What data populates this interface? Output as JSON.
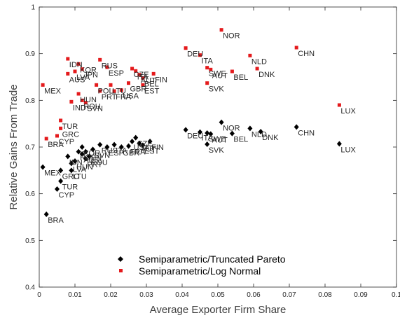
{
  "chart_data": {
    "type": "scatter",
    "title": "",
    "xlabel": "Average Exporter Firm Share",
    "ylabel": "Relative Gains From Trade",
    "xlim": [
      0,
      0.1
    ],
    "ylim": [
      0.4,
      1.0
    ],
    "xticks": [
      "0",
      "0.01",
      "0.02",
      "0.03",
      "0.04",
      "0.05",
      "0.06",
      "0.07",
      "0.08",
      "0.09",
      "0.1"
    ],
    "yticks": [
      "0.4",
      "0.5",
      "0.6",
      "0.7",
      "0.8",
      "0.9",
      "1"
    ],
    "grid": false,
    "legend_position": "bottom-center",
    "series": [
      {
        "name": "Semiparametric/Truncated Pareto",
        "marker": "diamond",
        "color": "#000000",
        "points": [
          {
            "label": "BRA",
            "x": 0.002,
            "y": 0.556
          },
          {
            "label": "CYP",
            "x": 0.005,
            "y": 0.61
          },
          {
            "label": "TUR",
            "x": 0.006,
            "y": 0.627
          },
          {
            "label": "GRC",
            "x": 0.006,
            "y": 0.65
          },
          {
            "label": "MEX",
            "x": 0.001,
            "y": 0.657
          },
          {
            "label": "IDN",
            "x": 0.008,
            "y": 0.68
          },
          {
            "label": "LVA",
            "x": 0.009,
            "y": 0.665
          },
          {
            "label": "LTU",
            "x": 0.009,
            "y": 0.65
          },
          {
            "label": "HUN",
            "x": 0.01,
            "y": 0.67
          },
          {
            "label": "POL",
            "x": 0.011,
            "y": 0.69
          },
          {
            "label": "KOR",
            "x": 0.012,
            "y": 0.7
          },
          {
            "label": "AUS",
            "x": 0.012,
            "y": 0.685
          },
          {
            "label": "JPN",
            "x": 0.013,
            "y": 0.69
          },
          {
            "label": "PRT",
            "x": 0.013,
            "y": 0.675
          },
          {
            "label": "ROU",
            "x": 0.014,
            "y": 0.68
          },
          {
            "label": "SVN",
            "x": 0.015,
            "y": 0.695
          },
          {
            "label": "RUS",
            "x": 0.017,
            "y": 0.705
          },
          {
            "label": "ESP",
            "x": 0.019,
            "y": 0.7
          },
          {
            "label": "ITA",
            "x": 0.021,
            "y": 0.705
          },
          {
            "label": "GBR",
            "x": 0.023,
            "y": 0.7
          },
          {
            "label": "FRA",
            "x": 0.025,
            "y": 0.702
          },
          {
            "label": "USA",
            "x": 0.026,
            "y": 0.712
          },
          {
            "label": "CZE",
            "x": 0.027,
            "y": 0.72
          },
          {
            "label": "AUT",
            "x": 0.028,
            "y": 0.708
          },
          {
            "label": "EST",
            "x": 0.029,
            "y": 0.704
          },
          {
            "label": "FIN",
            "x": 0.031,
            "y": 0.712
          },
          {
            "label": "DEU",
            "x": 0.041,
            "y": 0.737
          },
          {
            "label": "ITA",
            "x": 0.045,
            "y": 0.732
          },
          {
            "label": "SWE",
            "x": 0.047,
            "y": 0.73
          },
          {
            "label": "AUT",
            "x": 0.048,
            "y": 0.728
          },
          {
            "label": "SVK",
            "x": 0.047,
            "y": 0.706
          },
          {
            "label": "NOR",
            "x": 0.051,
            "y": 0.753
          },
          {
            "label": "BEL",
            "x": 0.054,
            "y": 0.729
          },
          {
            "label": "NLD",
            "x": 0.059,
            "y": 0.74
          },
          {
            "label": "DNK",
            "x": 0.062,
            "y": 0.733
          },
          {
            "label": "CHN",
            "x": 0.072,
            "y": 0.743
          },
          {
            "label": "LUX",
            "x": 0.084,
            "y": 0.707
          }
        ]
      },
      {
        "name": "Semiparametric/Log Normal",
        "marker": "square",
        "color": "#e41a1c",
        "points": [
          {
            "label": "MEX",
            "x": 0.001,
            "y": 0.833
          },
          {
            "label": "BRA",
            "x": 0.002,
            "y": 0.718
          },
          {
            "label": "CYP",
            "x": 0.005,
            "y": 0.724
          },
          {
            "label": "GRC",
            "x": 0.006,
            "y": 0.74
          },
          {
            "label": "TUR",
            "x": 0.006,
            "y": 0.757
          },
          {
            "label": "IDN",
            "x": 0.008,
            "y": 0.889
          },
          {
            "label": "AUS",
            "x": 0.008,
            "y": 0.857
          },
          {
            "label": "IND",
            "x": 0.009,
            "y": 0.797
          },
          {
            "label": "KOR",
            "x": 0.011,
            "y": 0.878
          },
          {
            "label": "LVA",
            "x": 0.01,
            "y": 0.862
          },
          {
            "label": "JPN",
            "x": 0.012,
            "y": 0.867
          },
          {
            "label": "HUN",
            "x": 0.011,
            "y": 0.814
          },
          {
            "label": "ROU",
            "x": 0.012,
            "y": 0.8
          },
          {
            "label": "SVN",
            "x": 0.013,
            "y": 0.795
          },
          {
            "label": "RUS",
            "x": 0.017,
            "y": 0.887
          },
          {
            "label": "ESP",
            "x": 0.019,
            "y": 0.871
          },
          {
            "label": "POL",
            "x": 0.016,
            "y": 0.833
          },
          {
            "label": "PRT",
            "x": 0.017,
            "y": 0.82
          },
          {
            "label": "LTU",
            "x": 0.02,
            "y": 0.833
          },
          {
            "label": "FRA",
            "x": 0.021,
            "y": 0.82
          },
          {
            "label": "USA",
            "x": 0.023,
            "y": 0.822
          },
          {
            "label": "GBR",
            "x": 0.025,
            "y": 0.837
          },
          {
            "label": "CZE",
            "x": 0.026,
            "y": 0.868
          },
          {
            "label": "ITA",
            "x": 0.027,
            "y": 0.863
          },
          {
            "label": "AUT",
            "x": 0.028,
            "y": 0.855
          },
          {
            "label": "BEL",
            "x": 0.029,
            "y": 0.848
          },
          {
            "label": "FIN",
            "x": 0.032,
            "y": 0.857
          },
          {
            "label": "EST",
            "x": 0.029,
            "y": 0.833
          },
          {
            "label": "DEU",
            "x": 0.041,
            "y": 0.912
          },
          {
            "label": "ITA",
            "x": 0.045,
            "y": 0.897
          },
          {
            "label": "SWE",
            "x": 0.047,
            "y": 0.87
          },
          {
            "label": "AUT",
            "x": 0.048,
            "y": 0.866
          },
          {
            "label": "SVK",
            "x": 0.047,
            "y": 0.837
          },
          {
            "label": "NOR",
            "x": 0.051,
            "y": 0.951
          },
          {
            "label": "BEL",
            "x": 0.054,
            "y": 0.862
          },
          {
            "label": "NLD",
            "x": 0.059,
            "y": 0.896
          },
          {
            "label": "DNK",
            "x": 0.061,
            "y": 0.868
          },
          {
            "label": "CHN",
            "x": 0.072,
            "y": 0.913
          },
          {
            "label": "LUX",
            "x": 0.084,
            "y": 0.79
          }
        ]
      }
    ]
  }
}
